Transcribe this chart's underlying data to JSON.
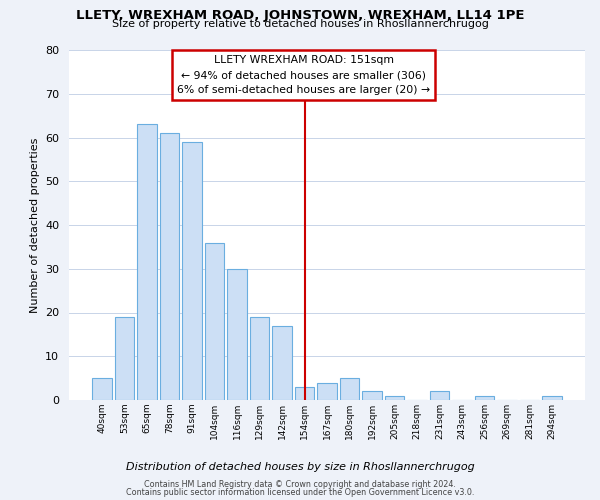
{
  "title": "LLETY, WREXHAM ROAD, JOHNSTOWN, WREXHAM, LL14 1PE",
  "subtitle": "Size of property relative to detached houses in Rhosllannerchrugog",
  "xlabel": "Distribution of detached houses by size in Rhosllannerchrugog",
  "ylabel": "Number of detached properties",
  "bar_labels": [
    "40sqm",
    "53sqm",
    "65sqm",
    "78sqm",
    "91sqm",
    "104sqm",
    "116sqm",
    "129sqm",
    "142sqm",
    "154sqm",
    "167sqm",
    "180sqm",
    "192sqm",
    "205sqm",
    "218sqm",
    "231sqm",
    "243sqm",
    "256sqm",
    "269sqm",
    "281sqm",
    "294sqm"
  ],
  "bar_values": [
    5,
    19,
    63,
    61,
    59,
    36,
    30,
    19,
    17,
    3,
    4,
    5,
    2,
    1,
    0,
    2,
    0,
    1,
    0,
    0,
    1
  ],
  "bar_color": "#ccdff5",
  "bar_edge_color": "#6aaee0",
  "vline_x_index": 9,
  "vline_color": "#cc0000",
  "ylim": [
    0,
    80
  ],
  "yticks": [
    0,
    10,
    20,
    30,
    40,
    50,
    60,
    70,
    80
  ],
  "annotation_title": "LLETY WREXHAM ROAD: 151sqm",
  "annotation_line1": "← 94% of detached houses are smaller (306)",
  "annotation_line2": "6% of semi-detached houses are larger (20) →",
  "footer_line1": "Contains HM Land Registry data © Crown copyright and database right 2024.",
  "footer_line2": "Contains public sector information licensed under the Open Government Licence v3.0.",
  "background_color": "#eef2f9",
  "plot_bg_color": "#ffffff",
  "grid_color": "#c8d4e8"
}
